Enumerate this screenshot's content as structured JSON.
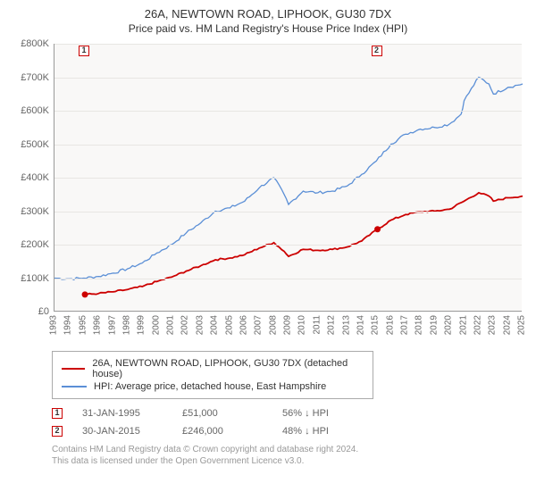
{
  "title": "26A, NEWTOWN ROAD, LIPHOOK, GU30 7DX",
  "subtitle": "Price paid vs. HM Land Registry's House Price Index (HPI)",
  "chart": {
    "type": "line",
    "background_color": "#f9f8f7",
    "grid_color": "#e8e6e3",
    "axis_color": "#999999",
    "ylim": [
      0,
      800
    ],
    "ytick_step": 100,
    "yticks": [
      "£0",
      "£100K",
      "£200K",
      "£300K",
      "£400K",
      "£500K",
      "£600K",
      "£700K",
      "£800K"
    ],
    "xlim": [
      1993,
      2025
    ],
    "xticks": [
      1993,
      1994,
      1995,
      1996,
      1997,
      1998,
      1999,
      2000,
      2001,
      2002,
      2003,
      2004,
      2005,
      2006,
      2007,
      2008,
      2009,
      2010,
      2011,
      2012,
      2013,
      2014,
      2015,
      2016,
      2017,
      2018,
      2019,
      2020,
      2021,
      2022,
      2023,
      2024,
      2025
    ],
    "label_fontsize": 10,
    "series": [
      {
        "name": "hpi",
        "label": "HPI: Average price, detached house, East Hampshire",
        "color": "#5b8fd6",
        "line_width": 1.3,
        "points": [
          [
            1993,
            100
          ],
          [
            1994,
            98
          ],
          [
            1995,
            100
          ],
          [
            1996,
            105
          ],
          [
            1997,
            115
          ],
          [
            1998,
            128
          ],
          [
            1999,
            145
          ],
          [
            2000,
            175
          ],
          [
            2001,
            200
          ],
          [
            2002,
            235
          ],
          [
            2003,
            265
          ],
          [
            2004,
            300
          ],
          [
            2005,
            310
          ],
          [
            2006,
            330
          ],
          [
            2007,
            370
          ],
          [
            2008,
            400
          ],
          [
            2008.7,
            350
          ],
          [
            2009,
            320
          ],
          [
            2010,
            360
          ],
          [
            2011,
            355
          ],
          [
            2012,
            360
          ],
          [
            2013,
            375
          ],
          [
            2014,
            410
          ],
          [
            2015,
            450
          ],
          [
            2016,
            500
          ],
          [
            2017,
            530
          ],
          [
            2018,
            545
          ],
          [
            2019,
            550
          ],
          [
            2020,
            560
          ],
          [
            2020.8,
            590
          ],
          [
            2021,
            630
          ],
          [
            2022,
            700
          ],
          [
            2022.7,
            680
          ],
          [
            2023,
            650
          ],
          [
            2024,
            670
          ],
          [
            2025,
            680
          ]
        ],
        "noise": 8
      },
      {
        "name": "price-paid",
        "label": "26A, NEWTOWN ROAD, LIPHOOK, GU30 7DX (detached house)",
        "color": "#cc0000",
        "line_width": 1.8,
        "points": [
          [
            1995.08,
            51
          ],
          [
            1996,
            54
          ],
          [
            1997,
            59
          ],
          [
            1998,
            66
          ],
          [
            1999,
            75
          ],
          [
            2000,
            90
          ],
          [
            2001,
            103
          ],
          [
            2002,
            121
          ],
          [
            2003,
            137
          ],
          [
            2004,
            155
          ],
          [
            2005,
            160
          ],
          [
            2006,
            170
          ],
          [
            2007,
            190
          ],
          [
            2008,
            206
          ],
          [
            2008.7,
            180
          ],
          [
            2009,
            165
          ],
          [
            2010,
            186
          ],
          [
            2011,
            183
          ],
          [
            2012,
            186
          ],
          [
            2013,
            193
          ],
          [
            2014,
            211
          ],
          [
            2015.08,
            246
          ],
          [
            2016,
            273
          ],
          [
            2017,
            290
          ],
          [
            2018,
            298
          ],
          [
            2019,
            300
          ],
          [
            2020,
            306
          ],
          [
            2021,
            330
          ],
          [
            2022,
            355
          ],
          [
            2022.7,
            345
          ],
          [
            2023,
            330
          ],
          [
            2024,
            340
          ],
          [
            2025,
            345
          ]
        ],
        "noise": 5,
        "markers": [
          {
            "idx": 1,
            "x": 1995.08,
            "y": 51
          },
          {
            "idx": 2,
            "x": 2015.08,
            "y": 246
          }
        ]
      }
    ]
  },
  "legend": {
    "items": [
      {
        "color": "#cc0000",
        "label": "26A, NEWTOWN ROAD, LIPHOOK, GU30 7DX (detached house)"
      },
      {
        "color": "#5b8fd6",
        "label": "HPI: Average price, detached house, East Hampshire"
      }
    ]
  },
  "transactions": [
    {
      "idx": "1",
      "date": "31-JAN-1995",
      "price": "£51,000",
      "pct": "56% ↓ HPI"
    },
    {
      "idx": "2",
      "date": "30-JAN-2015",
      "price": "£246,000",
      "pct": "48% ↓ HPI"
    }
  ],
  "footer": {
    "line1": "Contains HM Land Registry data © Crown copyright and database right 2024.",
    "line2": "This data is licensed under the Open Government Licence v3.0."
  },
  "colors": {
    "marker_border": "#cc0000",
    "text_muted": "#666666",
    "text_footer": "#999999"
  }
}
